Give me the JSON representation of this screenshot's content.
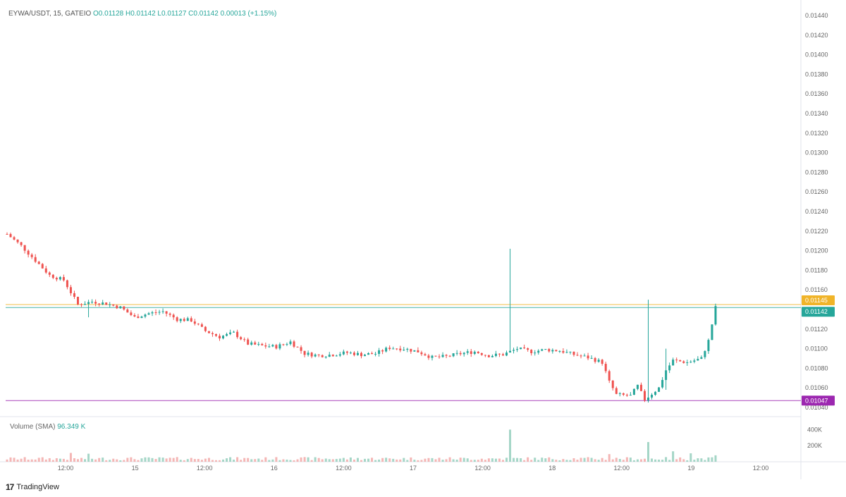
{
  "legend": {
    "symbol": "EYWA/USDT, 15, GATEIO",
    "open": "O0.01128",
    "high": "H0.01142",
    "low": "L0.01127",
    "close": "C0.01142",
    "change": "0.00013 (+1.15%)"
  },
  "volume_legend": {
    "label": "Volume (SMA)",
    "value": "96.349 K"
  },
  "brand": {
    "logo": "17",
    "name": "TradingView"
  },
  "colors": {
    "up": "#26a69a",
    "down": "#ef5350",
    "orange_line": "#f0b429",
    "green_line": "#26a69a",
    "purple_line": "#9c27b0",
    "grid": "#f0f3fa"
  },
  "price_badges": [
    {
      "name": "orange-price-badge",
      "label": "0.01145",
      "price": 0.01145,
      "color": "#f0b429"
    },
    {
      "name": "current-price-badge",
      "label": "0.01142",
      "price": 0.01142,
      "color": "#26a69a"
    },
    {
      "name": "purple-price-badge",
      "label": "0.01047",
      "price": 0.01047,
      "color": "#9c27b0"
    }
  ],
  "chart_data": {
    "type": "candlestick",
    "y_ticks": [
      "0.01440",
      "0.01420",
      "0.01400",
      "0.01380",
      "0.01360",
      "0.01340",
      "0.01320",
      "0.01300",
      "0.01280",
      "0.01260",
      "0.01240",
      "0.01220",
      "0.01200",
      "0.01180",
      "0.01160",
      "0.01120",
      "0.01100",
      "0.01080",
      "0.01060",
      "0.01040"
    ],
    "ylim": [
      0.0104,
      0.0144
    ],
    "volume_ticks": [
      "400K",
      "200K"
    ],
    "volume_ylim": [
      0,
      500
    ],
    "x_ticks": [
      "12:00",
      "15",
      "12:00",
      "16",
      "12:00",
      "17",
      "12:00",
      "18",
      "12:00",
      "19",
      "12:00"
    ],
    "x_range": [
      "14 00:00",
      "19 18:00"
    ],
    "price_path": [
      [
        0,
        0.01217
      ],
      [
        4,
        0.01205
      ],
      [
        8,
        0.0119
      ],
      [
        12,
        0.01175
      ],
      [
        16,
        0.0117
      ],
      [
        20,
        0.01145
      ],
      [
        24,
        0.01148
      ],
      [
        28,
        0.01146
      ],
      [
        32,
        0.01142
      ],
      [
        36,
        0.01132
      ],
      [
        40,
        0.01136
      ],
      [
        44,
        0.01138
      ],
      [
        48,
        0.0113
      ],
      [
        52,
        0.01129
      ],
      [
        56,
        0.01118
      ],
      [
        60,
        0.01112
      ],
      [
        64,
        0.01116
      ],
      [
        68,
        0.01105
      ],
      [
        72,
        0.01103
      ],
      [
        76,
        0.01102
      ],
      [
        80,
        0.01107
      ],
      [
        84,
        0.01095
      ],
      [
        88,
        0.01093
      ],
      [
        92,
        0.01094
      ],
      [
        96,
        0.01096
      ],
      [
        100,
        0.01094
      ],
      [
        104,
        0.01095
      ],
      [
        108,
        0.01101
      ],
      [
        112,
        0.011
      ],
      [
        116,
        0.01097
      ],
      [
        120,
        0.01091
      ],
      [
        124,
        0.01092
      ],
      [
        128,
        0.01095
      ],
      [
        132,
        0.01097
      ],
      [
        136,
        0.01093
      ],
      [
        140,
        0.01094
      ],
      [
        144,
        0.011
      ],
      [
        148,
        0.01097
      ],
      [
        152,
        0.01099
      ],
      [
        156,
        0.01098
      ],
      [
        160,
        0.01094
      ],
      [
        164,
        0.01091
      ],
      [
        168,
        0.01086
      ],
      [
        170,
        0.01066
      ],
      [
        172,
        0.01053
      ],
      [
        176,
        0.01052
      ],
      [
        178,
        0.01062
      ],
      [
        180,
        0.01048
      ],
      [
        184,
        0.0106
      ],
      [
        186,
        0.01078
      ],
      [
        188,
        0.01088
      ],
      [
        192,
        0.01086
      ],
      [
        196,
        0.0109
      ],
      [
        198,
        0.01108
      ],
      [
        200,
        0.01142
      ]
    ],
    "wicks": [
      {
        "bar": 142,
        "high": 0.01202,
        "low": 0.01098
      },
      {
        "bar": 181,
        "high": 0.0115,
        "low": 0.01045
      },
      {
        "bar": 186,
        "high": 0.011,
        "low": 0.01058
      },
      {
        "bar": 23,
        "high": 0.0115,
        "low": 0.01132
      }
    ],
    "volume_spikes": [
      {
        "bar": 142,
        "value": 400
      },
      {
        "bar": 181,
        "value": 245
      },
      {
        "bar": 18,
        "value": 110
      },
      {
        "bar": 23,
        "value": 100
      },
      {
        "bar": 188,
        "value": 130
      },
      {
        "bar": 193,
        "value": 105
      },
      {
        "bar": 170,
        "value": 95
      },
      {
        "bar": 200,
        "value": 80
      }
    ],
    "base_volume": 45,
    "bar_count": 201
  }
}
